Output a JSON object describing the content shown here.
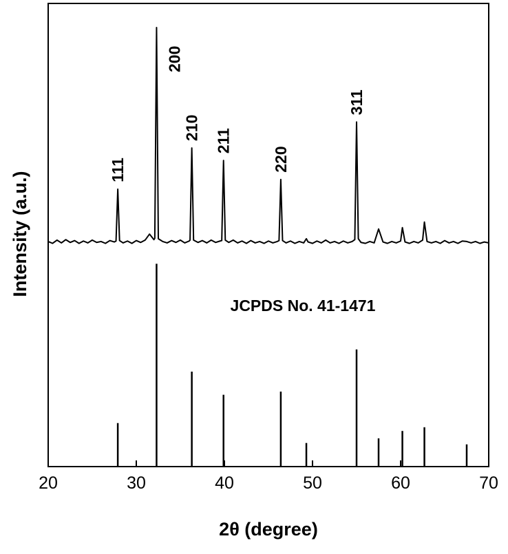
{
  "chart_data": {
    "type": "line",
    "xlabel": "2θ (degree)",
    "ylabel": "Intensity (a.u.)",
    "xlim": [
      20,
      70
    ],
    "xticks": [
      20,
      30,
      40,
      50,
      60,
      70
    ],
    "ylim": [
      0,
      100
    ],
    "series": [
      {
        "style": "line",
        "color": "#000000",
        "x": [
          20,
          20.5,
          21,
          21.5,
          22,
          22.5,
          23,
          23.5,
          24,
          24.5,
          25,
          25.5,
          26,
          26.5,
          27,
          27.5,
          27.7,
          27.9,
          28.1,
          28.5,
          29,
          29.5,
          30,
          30.5,
          31,
          31.5,
          32,
          32.1,
          32.3,
          32.5,
          33,
          33.5,
          34,
          34.5,
          35,
          35.5,
          36,
          36.1,
          36.3,
          36.5,
          37,
          37.5,
          38,
          38.5,
          39,
          39.5,
          39.7,
          39.9,
          40.1,
          40.5,
          41,
          41.5,
          42,
          42.5,
          43,
          43.5,
          44,
          44.5,
          45,
          45.5,
          46,
          46.2,
          46.4,
          46.6,
          47,
          47.5,
          48,
          48.5,
          49,
          49.3,
          49.5,
          50,
          50.5,
          51,
          51.5,
          52,
          52.5,
          53,
          53.5,
          54,
          54.5,
          54.8,
          55,
          55.2,
          55.5,
          56,
          56.5,
          57,
          57.5,
          58,
          58.5,
          59,
          59.5,
          60,
          60.2,
          60.5,
          61,
          61.5,
          62,
          62.5,
          62.7,
          63,
          63.5,
          64,
          64.5,
          65,
          65.5,
          66,
          66.5,
          67,
          67.5,
          68,
          68.5,
          69,
          69.5,
          70
        ],
        "values": [
          48.6,
          48.2,
          48.9,
          48.3,
          49.0,
          48.4,
          48.8,
          48.2,
          48.7,
          48.3,
          48.9,
          48.4,
          48.6,
          48.2,
          48.8,
          48.5,
          48.7,
          59.9,
          48.8,
          48.3,
          48.7,
          48.2,
          48.8,
          48.4,
          48.9,
          50.2,
          49.0,
          49.3,
          94.8,
          49.2,
          48.6,
          48.3,
          48.8,
          48.4,
          48.9,
          48.3,
          48.7,
          48.9,
          68.8,
          48.9,
          48.4,
          48.8,
          48.3,
          48.9,
          48.4,
          48.7,
          48.8,
          66.1,
          48.9,
          48.4,
          48.9,
          48.3,
          48.7,
          48.2,
          48.8,
          48.3,
          48.6,
          48.2,
          48.7,
          48.3,
          48.6,
          48.8,
          62.0,
          48.8,
          48.3,
          48.7,
          48.2,
          48.6,
          48.3,
          49.2,
          48.5,
          48.2,
          48.7,
          48.3,
          48.9,
          48.3,
          48.6,
          48.2,
          48.7,
          48.3,
          48.6,
          49.0,
          74.4,
          49.2,
          48.4,
          48.2,
          48.6,
          48.3,
          51.3,
          48.5,
          48.2,
          48.6,
          48.3,
          48.7,
          51.6,
          48.5,
          48.2,
          48.6,
          48.3,
          48.9,
          52.8,
          48.6,
          48.3,
          48.6,
          48.2,
          48.8,
          48.3,
          48.6,
          48.2,
          48.7,
          48.6,
          48.3,
          48.6,
          48.2,
          48.5,
          48.3
        ]
      },
      {
        "style": "stick",
        "color": "#000000",
        "name": "JCPDS No. 41-1471",
        "x": [
          27.9,
          32.3,
          36.3,
          39.9,
          46.4,
          49.3,
          55.0,
          57.5,
          60.2,
          62.7,
          67.5
        ],
        "values": [
          9.4,
          43.8,
          20.5,
          15.5,
          16.2,
          5.1,
          25.3,
          6.1,
          7.7,
          8.5,
          4.8
        ]
      }
    ],
    "annotations": [
      {
        "text": "111",
        "x": 27.9,
        "y": 59.9
      },
      {
        "text": "200",
        "x": 32.3,
        "y": 94.8
      },
      {
        "text": "210",
        "x": 36.3,
        "y": 68.8
      },
      {
        "text": "211",
        "x": 39.9,
        "y": 66.1
      },
      {
        "text": "220",
        "x": 46.4,
        "y": 62.0
      },
      {
        "text": "311",
        "x": 55.0,
        "y": 74.4
      }
    ]
  }
}
